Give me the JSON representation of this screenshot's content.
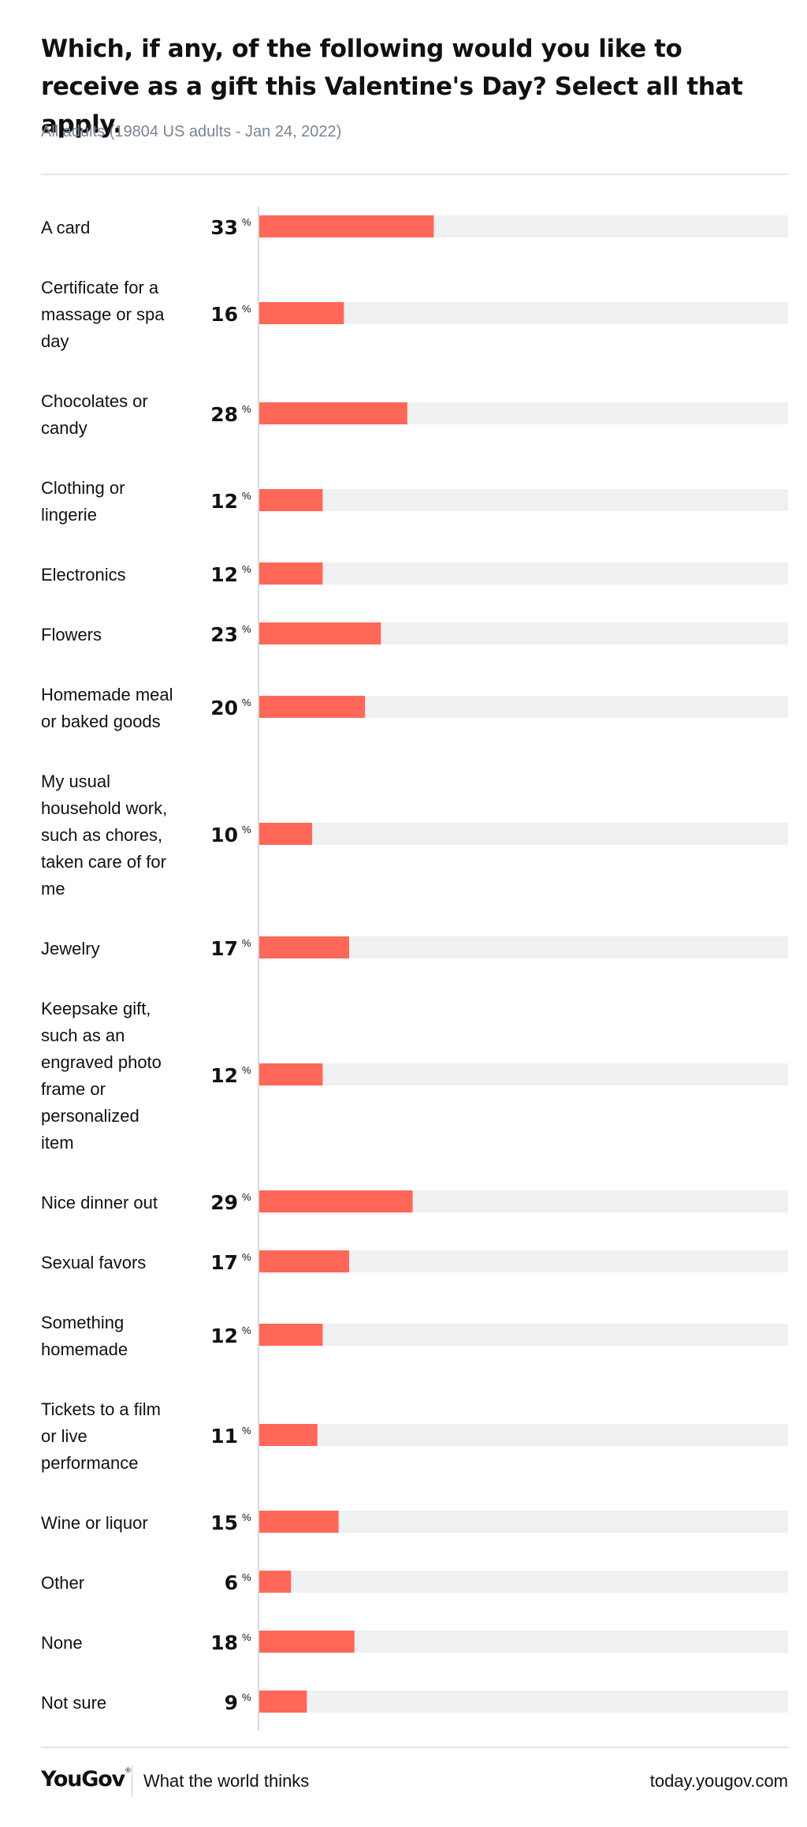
{
  "chart_data": {
    "type": "bar",
    "title": "Which, if any, of the following would you like to receive as a gift this Valentine's Day? Select all that apply.",
    "subtitle": "All adults (19804 US adults - Jan 24, 2022)",
    "unit": "%",
    "xlim": [
      0,
      100
    ],
    "orientation": "horizontal",
    "bar_color": "#ff6859",
    "track_color": "#eff0f2",
    "categories": [
      [
        "A card"
      ],
      [
        "Certificate for a",
        "massage or spa",
        "day"
      ],
      [
        "Chocolates or",
        "candy"
      ],
      [
        "Clothing or",
        "lingerie"
      ],
      [
        "Electronics"
      ],
      [
        "Flowers"
      ],
      [
        "Homemade meal",
        "or baked goods"
      ],
      [
        "My usual",
        "household work,",
        "such as chores,",
        "taken care of for",
        "me"
      ],
      [
        "Jewelry"
      ],
      [
        "Keepsake gift,",
        "such as an",
        "engraved photo",
        "frame or",
        "personalized",
        "item"
      ],
      [
        "Nice dinner out"
      ],
      [
        "Sexual favors"
      ],
      [
        "Something",
        "homemade"
      ],
      [
        "Tickets to a film",
        "or live",
        "performance"
      ],
      [
        "Wine or liquor"
      ],
      [
        "Other"
      ],
      [
        "None"
      ],
      [
        "Not sure"
      ]
    ],
    "values": [
      33,
      16,
      28,
      12,
      12,
      23,
      20,
      10,
      17,
      12,
      29,
      17,
      12,
      11,
      15,
      6,
      18,
      9
    ]
  },
  "footer": {
    "logo": "YouGov",
    "logo_mark": "®",
    "tagline": "What the world thinks",
    "url": "today.yougov.com"
  }
}
